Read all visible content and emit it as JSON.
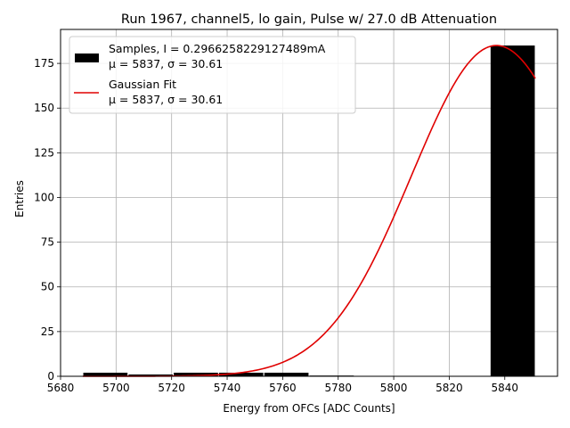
{
  "chart_data": {
    "type": "bar",
    "title": "Run 1967, channel5, lo gain, Pulse w/ 27.0 dB Attenuation",
    "xlabel": "Energy from OFCs [ADC Counts]",
    "ylabel": "Entries",
    "xlim": [
      5680,
      5859
    ],
    "ylim": [
      0,
      194
    ],
    "x_ticks": [
      5680,
      5700,
      5720,
      5740,
      5760,
      5780,
      5800,
      5820,
      5840
    ],
    "y_ticks": [
      0,
      25,
      50,
      75,
      100,
      125,
      150,
      175
    ],
    "grid": true,
    "legend_position": "top-left",
    "colors": {
      "bars": "#000000",
      "fit": "#e00000",
      "grid": "#b0b0b0"
    },
    "histogram": {
      "name": "Samples, I = 0.2966258229127489mA",
      "bins": [
        {
          "x0": 5688,
          "x1": 5704.3,
          "count": 2
        },
        {
          "x0": 5704.3,
          "x1": 5720.6,
          "count": 1
        },
        {
          "x0": 5720.6,
          "x1": 5736.9,
          "count": 2
        },
        {
          "x0": 5736.9,
          "x1": 5753.2,
          "count": 2
        },
        {
          "x0": 5753.2,
          "x1": 5769.5,
          "count": 2
        },
        {
          "x0": 5769.5,
          "x1": 5785.8,
          "count": 0.4
        },
        {
          "x0": 5785.8,
          "x1": 5802.1,
          "count": 0
        },
        {
          "x0": 5802.1,
          "x1": 5818.4,
          "count": 0
        },
        {
          "x0": 5818.4,
          "x1": 5834.7,
          "count": 0
        },
        {
          "x0": 5834.7,
          "x1": 5851,
          "count": 185
        }
      ]
    },
    "fit": {
      "name": "Gaussian Fit",
      "mu": 5837,
      "sigma": 30.61,
      "amplitude": 185,
      "x_range": [
        5688,
        5851
      ]
    },
    "legend": [
      {
        "kind": "bar",
        "line1": "Samples, I = 0.2966258229127489mA",
        "line2": "μ = 5837, σ = 30.61"
      },
      {
        "kind": "line",
        "line1": "Gaussian Fit",
        "line2": "μ = 5837, σ = 30.61"
      }
    ]
  }
}
